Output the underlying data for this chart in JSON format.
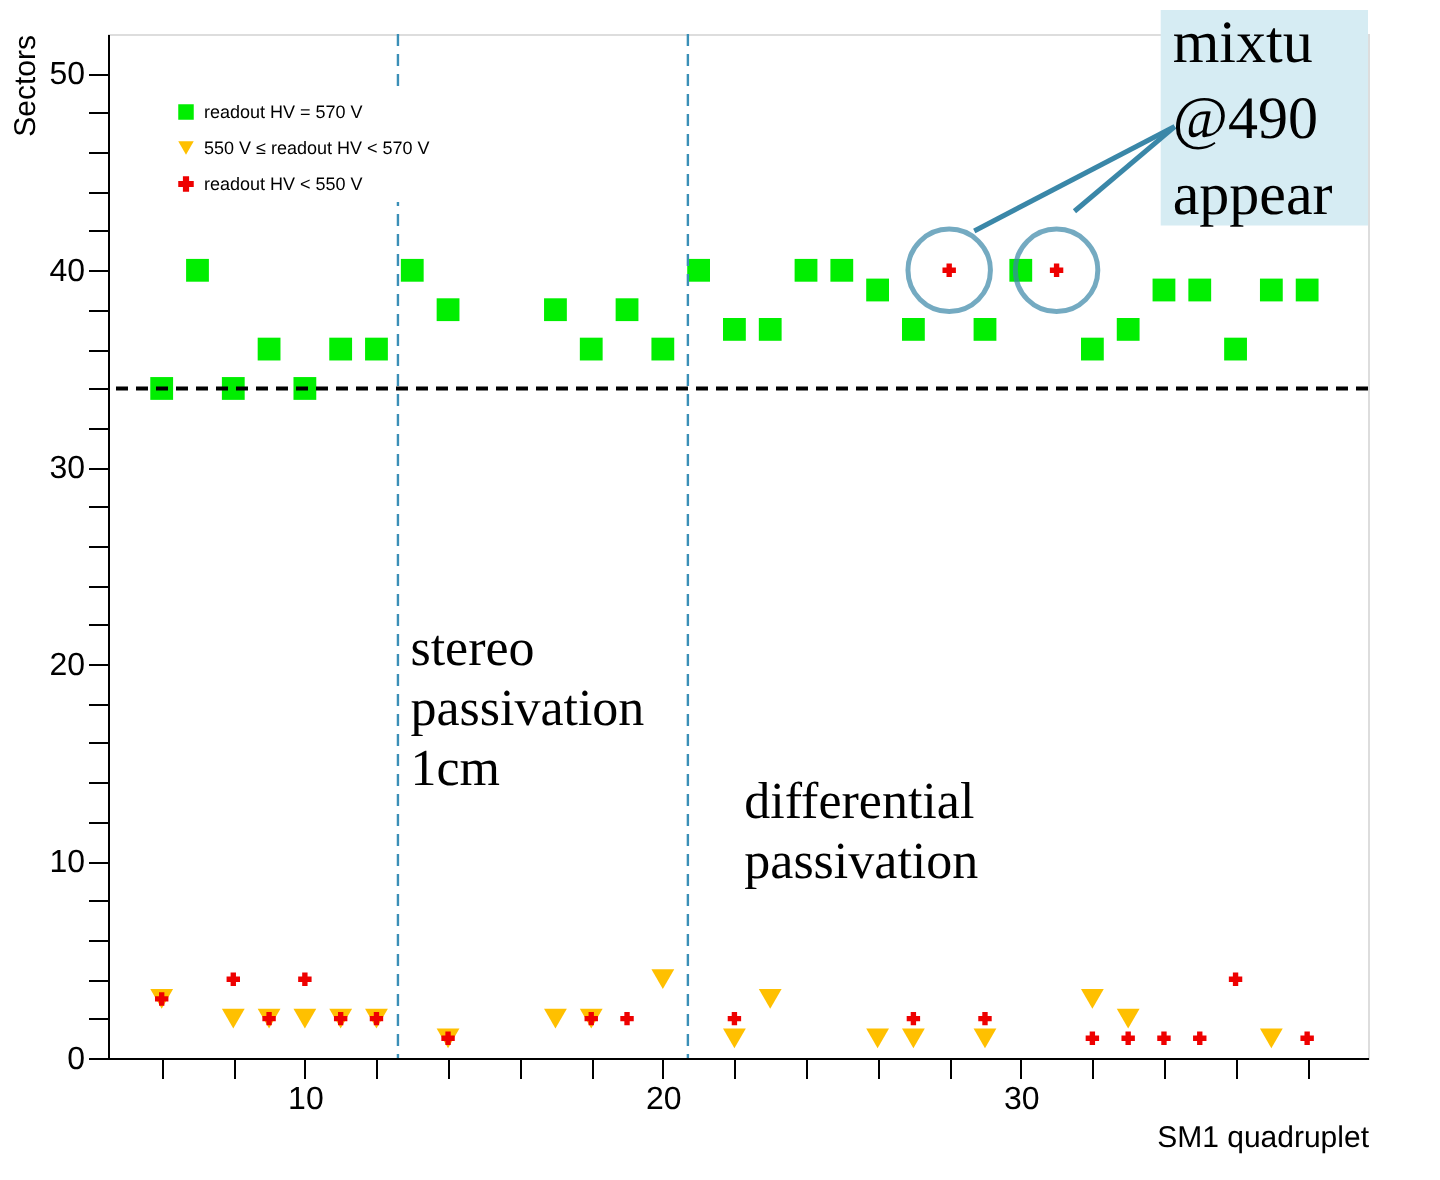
{
  "chart_data": {
    "type": "scatter",
    "xlabel": "SM1 quadruplet",
    "ylabel": "Sectors",
    "xlim": [
      4.5,
      39.7
    ],
    "ylim": [
      0,
      52
    ],
    "xticks": [
      {
        "value": 6,
        "label": null
      },
      {
        "value": 8,
        "label": null
      },
      10,
      {
        "value": 12,
        "label": null
      },
      {
        "value": 14,
        "label": null
      },
      {
        "value": 16,
        "label": null
      },
      {
        "value": 18,
        "label": null
      },
      20,
      {
        "value": 22,
        "label": null
      },
      {
        "value": 24,
        "label": null
      },
      {
        "value": 26,
        "label": null
      },
      {
        "value": 28,
        "label": null
      },
      30,
      {
        "value": 32,
        "label": null
      },
      {
        "value": 34,
        "label": null
      },
      {
        "value": 36,
        "label": null
      },
      {
        "value": 38,
        "label": null
      }
    ],
    "yticks": [
      0,
      {
        "value": 2,
        "label": null
      },
      {
        "value": 4,
        "label": null
      },
      {
        "value": 6,
        "label": null
      },
      {
        "value": 8,
        "label": null
      },
      10,
      {
        "value": 12,
        "label": null
      },
      {
        "value": 14,
        "label": null
      },
      {
        "value": 16,
        "label": null
      },
      {
        "value": 18,
        "label": null
      },
      20,
      {
        "value": 22,
        "label": null
      },
      {
        "value": 24,
        "label": null
      },
      {
        "value": 26,
        "label": null
      },
      {
        "value": 28,
        "label": null
      },
      30,
      {
        "value": 32,
        "label": null
      },
      {
        "value": 34,
        "label": null
      },
      {
        "value": 36,
        "label": null
      },
      {
        "value": 38,
        "label": null
      },
      40,
      {
        "value": 42,
        "label": null
      },
      {
        "value": 44,
        "label": null
      },
      {
        "value": 46,
        "label": null
      },
      {
        "value": 48,
        "label": null
      },
      50
    ],
    "grid": false,
    "legend": "top left",
    "series": [
      {
        "name": "readout HV = 570 V",
        "color": "#00ee00",
        "marker": "square",
        "x": [
          6,
          7,
          8,
          9,
          10,
          11,
          12,
          13,
          14,
          17,
          18,
          19,
          20,
          21,
          22,
          23,
          24,
          25,
          26,
          27,
          29,
          30,
          32,
          33,
          34,
          35,
          36,
          37,
          38
        ],
        "values": [
          34,
          40,
          34,
          36,
          34,
          36,
          36,
          40,
          38,
          38,
          36,
          38,
          36,
          40,
          37,
          37,
          40,
          40,
          39,
          37,
          37,
          40,
          36,
          37,
          39,
          39,
          36,
          39,
          39
        ]
      },
      {
        "name": "550 V ≤ readout HV < 570 V",
        "color": "#ffc000",
        "marker": "triangle",
        "x": [
          6,
          8,
          9,
          10,
          11,
          12,
          14,
          17,
          18,
          20,
          22,
          23,
          26,
          27,
          29,
          32,
          33,
          37
        ],
        "values": [
          3,
          2,
          2,
          2,
          2,
          2,
          1,
          2,
          2,
          4,
          1,
          3,
          1,
          1,
          1,
          3,
          2,
          1
        ]
      },
      {
        "name": "readout HV < 550 V",
        "color": "#ee0000",
        "marker": "cross",
        "x": [
          6,
          8,
          9,
          10,
          11,
          12,
          14,
          18,
          19,
          22,
          27,
          28,
          29,
          31,
          32,
          33,
          34,
          35,
          36,
          38
        ],
        "values": [
          3,
          4,
          2,
          4,
          2,
          2,
          1,
          2,
          2,
          2,
          2,
          40,
          2,
          40,
          1,
          1,
          1,
          1,
          4,
          1
        ]
      }
    ],
    "ref_lines": [
      {
        "axis": "y",
        "value": 34,
        "color": "#000000",
        "line_style": "dashed"
      },
      {
        "axis": "x",
        "value": 12.6,
        "color": "#3a8fb7",
        "line_style": "dashed"
      },
      {
        "axis": "x",
        "value": 20.7,
        "color": "#3a8fb7",
        "line_style": "dashed"
      }
    ],
    "annotations": [
      "stereo\npassivation\n1cm",
      "differential\npassivation",
      "mixtu\n@490\nappear"
    ]
  }
}
